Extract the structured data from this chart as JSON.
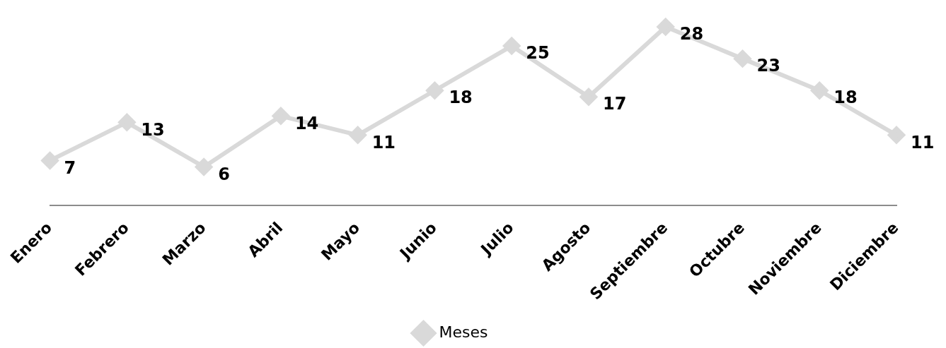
{
  "chart_data": {
    "type": "line",
    "categories": [
      "Enero",
      "Febrero",
      "Marzo",
      "Abril",
      "Mayo",
      "Junio",
      "Julio",
      "Agosto",
      "Septiembre",
      "Octubre",
      "Noviembre",
      "Diciembre"
    ],
    "series": [
      {
        "name": "Meses",
        "color": "#d9d9d9",
        "values": [
          7,
          13,
          6,
          14,
          11,
          18,
          25,
          17,
          28,
          23,
          18,
          11
        ]
      }
    ],
    "tick_labels": "x",
    "data_labels": true,
    "marker": "diamond",
    "line_style": "solid",
    "legend": "bottom",
    "grid": false
  }
}
